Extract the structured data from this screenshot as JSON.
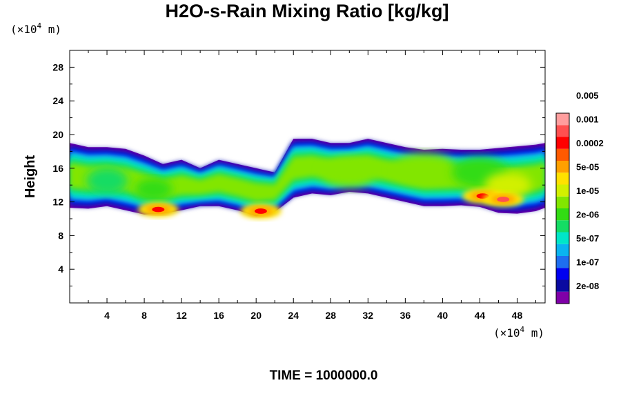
{
  "chart_data": {
    "type": "heatmap",
    "title": "H2O-s-Rain Mixing Ratio [kg/kg]",
    "ylabel": "Height",
    "x_unit": {
      "prefix": "(×10",
      "exp": "4",
      "suffix": " m)"
    },
    "y_unit": {
      "prefix": "(×10",
      "exp": "4",
      "suffix": " m)"
    },
    "xlim": [
      0,
      51
    ],
    "ylim": [
      0,
      30
    ],
    "x_ticks": [
      4,
      8,
      12,
      16,
      20,
      24,
      28,
      32,
      36,
      40,
      44,
      48
    ],
    "y_ticks": [
      4,
      8,
      12,
      16,
      20,
      24,
      28
    ],
    "colorbar": {
      "levels": [
        "2e-08",
        "1e-07",
        "5e-07",
        "2e-06",
        "1e-05",
        "5e-05",
        "0.0002",
        "0.001",
        "0.005"
      ],
      "colors": [
        "#7f00a8",
        "#0a0aa0",
        "#0000f0",
        "#1e6ef0",
        "#0ab4f0",
        "#00e6c8",
        "#14dc64",
        "#32dc14",
        "#82e600",
        "#d2f000",
        "#ffe100",
        "#ffa000",
        "#ff5a00",
        "#ff0000",
        "#ff5050",
        "#ff9e9e"
      ]
    },
    "cloud_band": {
      "x": [
        0,
        2,
        4,
        6,
        8,
        10,
        12,
        14,
        16,
        18,
        20,
        22,
        24,
        26,
        28,
        30,
        32,
        34,
        36,
        38,
        40,
        42,
        44,
        46,
        48,
        50,
        51
      ],
      "top": [
        19,
        18.5,
        18.5,
        18.3,
        17.5,
        16.5,
        17,
        16,
        17,
        16.5,
        16,
        15.5,
        19.5,
        19.5,
        19,
        19,
        19.5,
        19,
        18.5,
        18.2,
        18.3,
        18.2,
        18.2,
        18.4,
        18.6,
        18.8,
        19
      ],
      "bottom": [
        11.3,
        11.2,
        11.5,
        11,
        10.5,
        10.6,
        11,
        11.5,
        11.5,
        11,
        10.3,
        10.8,
        12.5,
        13,
        12.8,
        13.2,
        13,
        12.5,
        12,
        11.5,
        11.5,
        11.6,
        11.4,
        10.7,
        10.6,
        10.9,
        11.3
      ]
    },
    "intense_cores": [
      {
        "x": 9.5,
        "y": 11.1,
        "level": 13
      },
      {
        "x": 20.5,
        "y": 10.9,
        "level": 13
      },
      {
        "x": 44.3,
        "y": 12.7,
        "level": 13
      },
      {
        "x": 46.5,
        "y": 12.3,
        "level": 14
      }
    ],
    "time_label": "TIME = 1000000.0"
  }
}
